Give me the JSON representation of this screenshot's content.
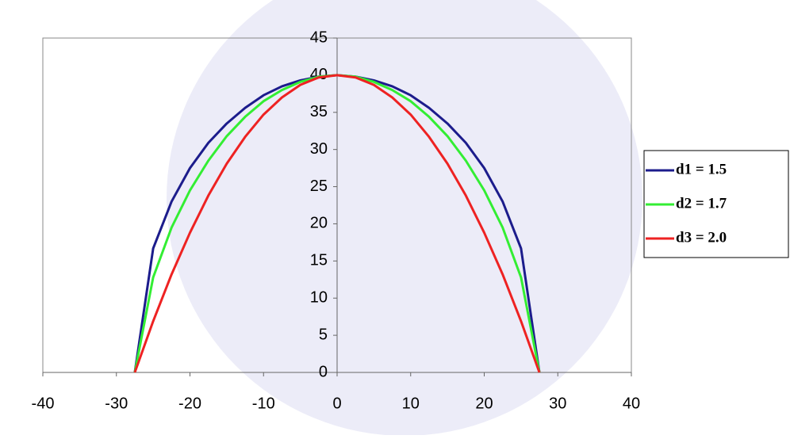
{
  "chart_data": {
    "type": "line",
    "x": [
      -27.5,
      -25,
      -22.5,
      -20,
      -17.5,
      -15,
      -12.5,
      -10,
      -7.5,
      -5,
      -2.5,
      0,
      2.5,
      5,
      7.5,
      10,
      12.5,
      15,
      17.5,
      20,
      22.5,
      25,
      27.5
    ],
    "series": [
      {
        "name": "d1 = 1.5",
        "color": "#1c1c8c",
        "values": [
          0,
          16.7,
          23.0,
          27.5,
          30.9,
          33.5,
          35.6,
          37.3,
          38.5,
          39.3,
          39.8,
          40,
          39.8,
          39.3,
          38.5,
          37.3,
          35.6,
          33.5,
          30.9,
          27.5,
          23.0,
          16.7,
          0
        ]
      },
      {
        "name": "d2 = 1.7",
        "color": "#33ee33",
        "values": [
          0,
          12.8,
          19.5,
          24.5,
          28.5,
          31.8,
          34.4,
          36.5,
          38.0,
          39.1,
          39.8,
          40,
          39.8,
          39.1,
          38.0,
          36.5,
          34.4,
          31.8,
          28.5,
          24.5,
          19.5,
          12.8,
          0
        ]
      },
      {
        "name": "d3 = 2.0",
        "color": "#ee2222",
        "values": [
          0,
          6.9,
          13.2,
          18.8,
          23.8,
          28.1,
          31.7,
          34.7,
          37.0,
          38.7,
          39.7,
          40,
          39.7,
          38.7,
          37.0,
          34.7,
          31.7,
          28.1,
          23.8,
          18.8,
          13.2,
          6.9,
          0
        ]
      }
    ],
    "xlim": [
      -40,
      40
    ],
    "xticks": [
      -40,
      -30,
      -20,
      -10,
      0,
      10,
      20,
      30,
      40
    ],
    "ylim": [
      0,
      45
    ],
    "yticks": [
      0,
      5,
      10,
      15,
      20,
      25,
      30,
      35,
      40,
      45
    ],
    "legend": "right"
  }
}
